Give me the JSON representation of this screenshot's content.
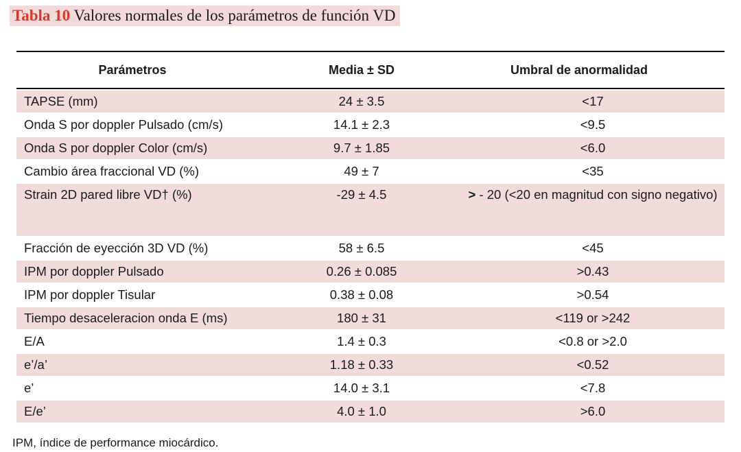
{
  "title": {
    "label": "Tabla 10",
    "text": " Valores normales de los parámetros de función VD"
  },
  "table": {
    "headers": [
      "Parámetros",
      "Media ± SD",
      "Umbral de anormalidad"
    ],
    "rows": [
      {
        "param": "TAPSE (mm)",
        "mean": "24 ± 3.5",
        "threshold": "<17"
      },
      {
        "param": "Onda S por doppler Pulsado (cm/s)",
        "mean": "14.1 ± 2.3",
        "threshold": "<9.5"
      },
      {
        "param": "Onda S por doppler Color (cm/s)",
        "mean": "9.7 ± 1.85",
        "threshold": "<6.0"
      },
      {
        "param": "Cambio área fraccional VD (%)",
        "mean": "49 ± 7",
        "threshold": "<35"
      },
      {
        "param": "Strain 2D pared libre VD† (%)",
        "mean": "-29 ± 4.5",
        "threshold_gt": ">",
        "threshold": " - 20 (<20 en magnitud con signo negativo)"
      },
      {
        "param": "Fracción de eyección 3D VD (%)",
        "mean": "58 ± 6.5",
        "threshold": "<45"
      },
      {
        "param": "IPM por doppler Pulsado",
        "mean": "0.26 ± 0.085",
        "threshold": ">0.43"
      },
      {
        "param": "IPM por doppler Tisular",
        "mean": "0.38 ± 0.08",
        "threshold": ">0.54"
      },
      {
        "param": "Tiempo desaceleracion onda E (ms)",
        "mean": "180 ± 31",
        "threshold": "<119 or >242"
      },
      {
        "param": "E/A",
        "mean": "1.4 ± 0.3",
        "threshold": "<0.8 or >2.0"
      },
      {
        "param": "e’/a’",
        "mean": "1.18 ± 0.33",
        "threshold": "<0.52"
      },
      {
        "param": "e’",
        "mean": "14.0 ± 3.1",
        "threshold": "<7.8"
      },
      {
        "param": "E/e’",
        "mean": "4.0 ± 1.0",
        "threshold": ">6.0"
      }
    ]
  },
  "footnote": "IPM, índice de performance miocárdico.",
  "colors": {
    "row_shade": "#f2dcdb",
    "title_label": "#d63a2e",
    "title_background": "#f3dada"
  }
}
